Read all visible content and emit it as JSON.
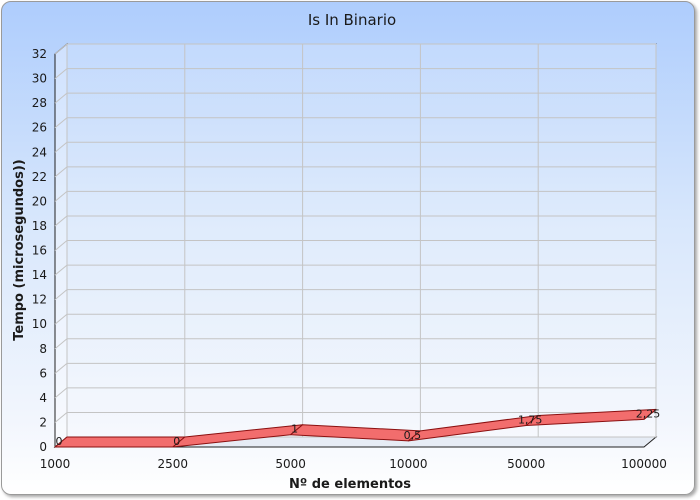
{
  "chart_data": {
    "type": "line",
    "title": "Is In Binario",
    "xlabel": "Nº de elementos",
    "ylabel": "Tempo (microsegundos))",
    "categories": [
      "1000",
      "2500",
      "5000",
      "10000",
      "50000",
      "100000"
    ],
    "values": [
      0,
      0,
      1,
      0.5,
      1.75,
      2.25
    ],
    "data_labels": [
      "0",
      "0",
      "1",
      "0,5",
      "1,75",
      "2,25"
    ],
    "ylim": [
      0,
      32
    ],
    "yticks": [
      0,
      2,
      4,
      6,
      8,
      10,
      12,
      14,
      16,
      18,
      20,
      22,
      24,
      26,
      28,
      30,
      32
    ],
    "grid": true,
    "series_color": "#f26d6d",
    "series_edge_color": "#8a1010"
  }
}
